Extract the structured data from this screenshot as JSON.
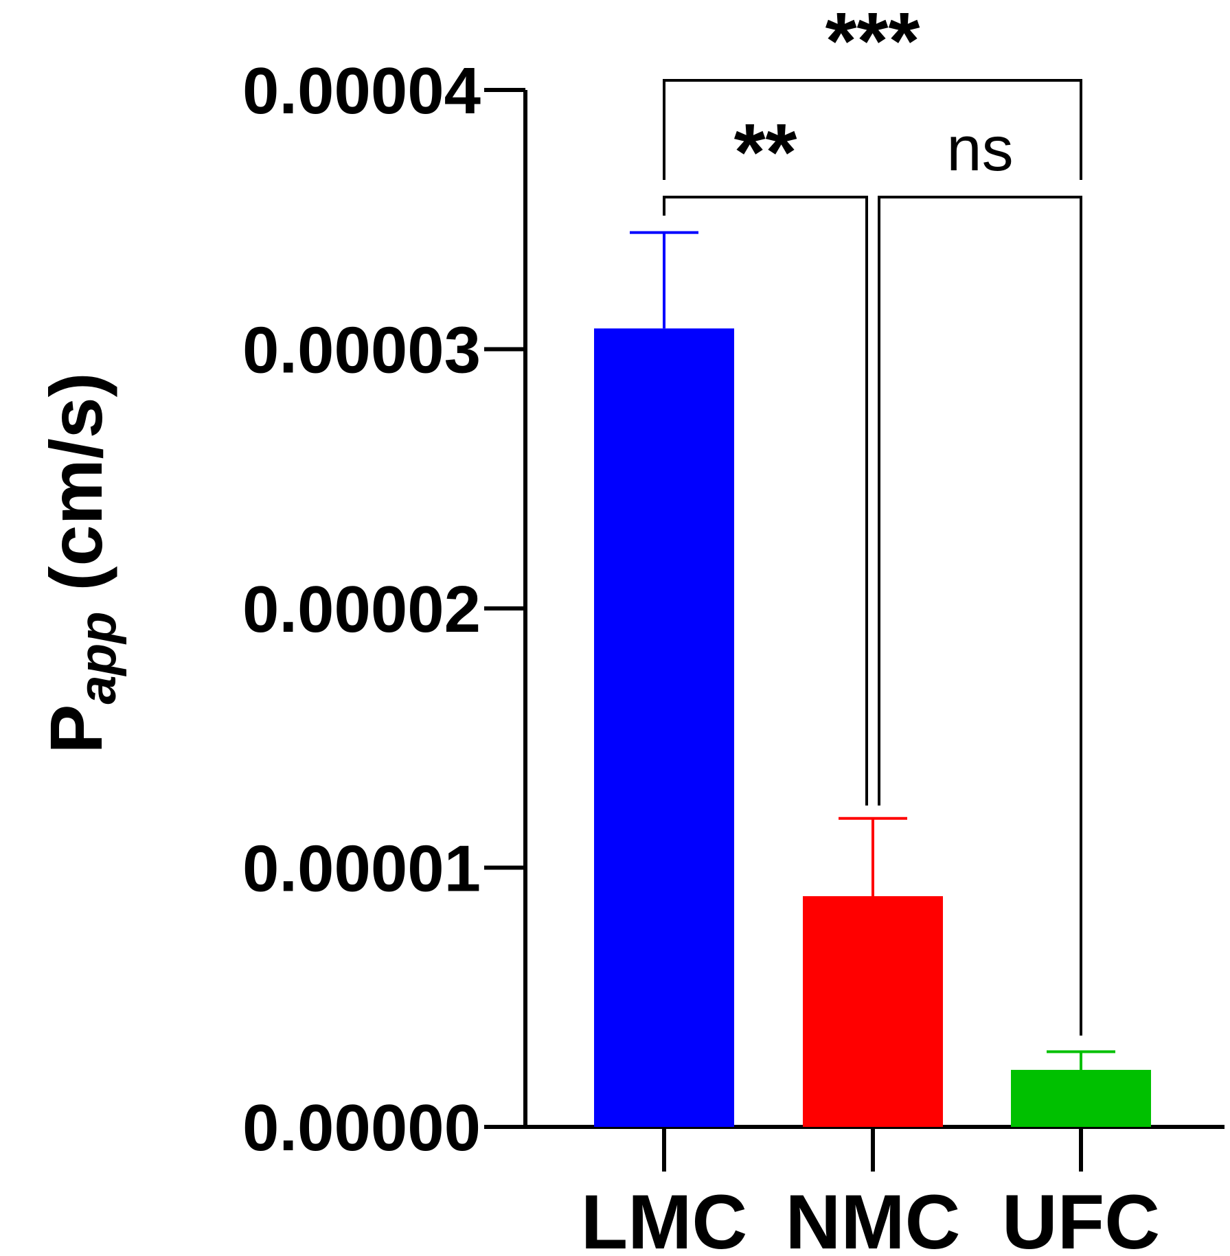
{
  "chart_data": {
    "type": "bar",
    "categories": [
      "LMC",
      "NMC",
      "UFC"
    ],
    "values": [
      3.08e-05,
      8.9e-06,
      2.2e-06
    ],
    "errors": [
      3.7e-06,
      3e-06,
      7e-07
    ],
    "colors": [
      "#0000ff",
      "#ff0000",
      "#00c000"
    ],
    "ylabel": {
      "main": "P",
      "subscript": "app",
      "suffix": " (cm/s)"
    },
    "ylim": [
      0,
      4e-05
    ],
    "yticks": [
      0,
      1e-05,
      2e-05,
      3e-05,
      4e-05
    ],
    "ytick_labels": [
      "0.00000",
      "0.00001",
      "0.00002",
      "0.00003",
      "0.00004"
    ],
    "significance": [
      {
        "from": "LMC",
        "to": "UFC",
        "label": "***"
      },
      {
        "from": "LMC",
        "to": "NMC",
        "label": "**"
      },
      {
        "from": "NMC",
        "to": "UFC",
        "label": "ns"
      }
    ],
    "grid": false,
    "legend": "none"
  }
}
